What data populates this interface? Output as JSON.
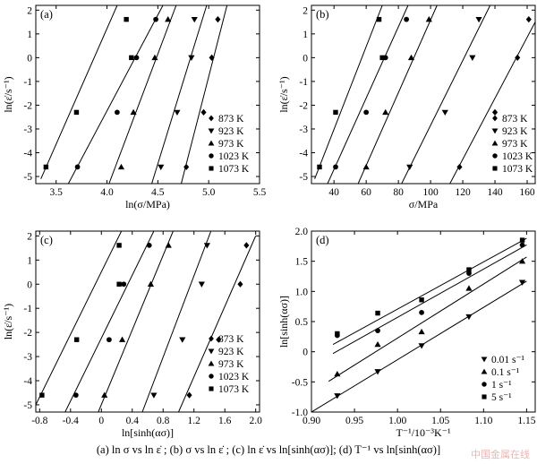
{
  "caption": "(a)   ln σ   vs   ln ε̇ ; (b)   σ   vs   ln ε̇ ; (c)   ln ε̇ vs ln[sinh(ασ)]; (d) T⁻¹ vs ln[sinh(ασ)]",
  "watermark": "中国金属在线",
  "legend_temps": [
    "873 K",
    "923 K",
    "973 K",
    "1023 K",
    "1073 K"
  ],
  "legend_rates": [
    "0.01 s⁻¹",
    "0.1 s⁻¹",
    "1 s⁻¹",
    "5 s⁻¹"
  ],
  "chart_data": [
    {
      "panel": "(a)",
      "type": "scatter",
      "xlabel": "ln(σ/MPa)",
      "ylabel": "ln(ε̇/s⁻¹)",
      "xlim": [
        3.3,
        5.5
      ],
      "ylim": [
        -5.3,
        2.2
      ],
      "xticks": [
        "3.5",
        "4.0",
        "4.5",
        "5.0",
        "5.5"
      ],
      "yticks": [
        "2",
        "1",
        "0",
        "-1",
        "-2",
        "-3",
        "-4",
        "-5"
      ],
      "legend_position": "bottom-right",
      "series": [
        {
          "name": "873 K",
          "marker": "diamond",
          "x": [
            5.09,
            5.03,
            4.95,
            4.78
          ],
          "y": [
            1.61,
            0,
            -2.3,
            -4.6
          ],
          "fit": [
            [
              4.73,
              -5.3
            ],
            [
              5.18,
              2.2
            ]
          ]
        },
        {
          "name": "923 K",
          "marker": "triangle-down",
          "x": [
            4.86,
            4.83,
            4.69,
            4.53
          ],
          "y": [
            1.61,
            0,
            -2.3,
            -4.6
          ],
          "fit": [
            [
              4.44,
              -5.3
            ],
            [
              4.98,
              2.2
            ]
          ]
        },
        {
          "name": "973 K",
          "marker": "triangle-up",
          "x": [
            4.6,
            4.47,
            4.26,
            4.14
          ],
          "y": [
            1.61,
            0,
            -2.3,
            -4.6
          ],
          "fit": [
            [
              4.02,
              -5.3
            ],
            [
              4.68,
              2.2
            ]
          ]
        },
        {
          "name": "1023 K",
          "marker": "circle",
          "x": [
            4.48,
            4.29,
            4.1,
            3.71
          ],
          "y": [
            1.61,
            0,
            -2.3,
            -4.6
          ],
          "fit": [
            [
              3.62,
              -5.3
            ],
            [
              4.55,
              2.2
            ]
          ]
        },
        {
          "name": "1073 K",
          "marker": "square",
          "x": [
            4.19,
            4.24,
            3.7,
            3.4
          ],
          "y": [
            1.61,
            0,
            -2.3,
            -4.6
          ],
          "fit": [
            [
              3.35,
              -5.1
            ],
            [
              4.1,
              2.2
            ]
          ]
        }
      ]
    },
    {
      "panel": "(b)",
      "type": "scatter",
      "xlabel": "σ/MPa",
      "ylabel": "ln(ε̇/s⁻¹)",
      "xlim": [
        26,
        165
      ],
      "ylim": [
        -5.3,
        2.2
      ],
      "xticks": [
        "40",
        "60",
        "80",
        "100",
        "120",
        "140",
        "160"
      ],
      "yticks": [
        "2",
        "1",
        "0",
        "-1",
        "-2",
        "-3",
        "-4",
        "-5"
      ],
      "legend_position": "bottom-right",
      "series": [
        {
          "name": "873 K",
          "marker": "diamond",
          "x": [
            161,
            154,
            140,
            118
          ],
          "y": [
            1.61,
            0,
            -2.3,
            -4.6
          ],
          "fit": [
            [
              112,
              -5.3
            ],
            [
              165,
              1.5
            ]
          ]
        },
        {
          "name": "923 K",
          "marker": "triangle-down",
          "x": [
            130,
            126,
            109,
            87
          ],
          "y": [
            1.61,
            0,
            -2.3,
            -4.6
          ],
          "fit": [
            [
              82,
              -5.3
            ],
            [
              137,
              2.2
            ]
          ]
        },
        {
          "name": "973 K",
          "marker": "triangle-up",
          "x": [
            99,
            88,
            72,
            60
          ],
          "y": [
            1.61,
            0,
            -2.3,
            -4.6
          ],
          "fit": [
            [
              55,
              -5.3
            ],
            [
              104,
              2.2
            ]
          ]
        },
        {
          "name": "1023 K",
          "marker": "circle",
          "x": [
            85,
            72,
            60,
            41
          ],
          "y": [
            1.61,
            0,
            -2.3,
            -4.6
          ],
          "fit": [
            [
              36,
              -5.3
            ],
            [
              86,
              2.2
            ]
          ]
        },
        {
          "name": "1073 K",
          "marker": "square",
          "x": [
            68,
            70,
            41,
            31
          ],
          "y": [
            1.61,
            0,
            -2.3,
            -4.6
          ],
          "fit": [
            [
              28,
              -5.1
            ],
            [
              70,
              2.2
            ]
          ]
        }
      ]
    },
    {
      "panel": "(c)",
      "type": "scatter",
      "xlabel": "ln[sinh(ασ)]",
      "ylabel": "ln(ε̇/s⁻¹)",
      "xlim": [
        -0.85,
        2.05
      ],
      "ylim": [
        -5.3,
        2.2
      ],
      "xticks": [
        "-0.8",
        "-0.4",
        "0",
        "0.4",
        "0.8",
        "1.2",
        "1.6",
        "2.0"
      ],
      "yticks": [
        "2",
        "1",
        "0",
        "-1",
        "-2",
        "-3",
        "-4",
        "-5"
      ],
      "legend_position": "bottom-right",
      "series": [
        {
          "name": "873 K",
          "marker": "diamond",
          "x": [
            1.88,
            1.8,
            1.52,
            1.14
          ],
          "y": [
            1.61,
            0,
            -2.3,
            -4.6
          ],
          "fit": [
            [
              1.0,
              -5.3
            ],
            [
              2.0,
              2.0
            ]
          ]
        },
        {
          "name": "923 K",
          "marker": "triangle-down",
          "x": [
            1.37,
            1.3,
            1.05,
            0.68
          ],
          "y": [
            1.61,
            0,
            -2.3,
            -4.6
          ],
          "fit": [
            [
              0.53,
              -5.3
            ],
            [
              1.42,
              2.2
            ]
          ]
        },
        {
          "name": "973 K",
          "marker": "triangle-up",
          "x": [
            0.87,
            0.64,
            0.27,
            0.04
          ],
          "y": [
            1.61,
            0,
            -2.3,
            -4.6
          ],
          "fit": [
            [
              -0.04,
              -5.3
            ],
            [
              0.93,
              2.2
            ]
          ]
        },
        {
          "name": "1023 K",
          "marker": "circle",
          "x": [
            0.62,
            0.29,
            0.1,
            -0.33
          ],
          "y": [
            1.61,
            0,
            -2.3,
            -4.6
          ],
          "fit": [
            [
              -0.47,
              -5.3
            ],
            [
              0.68,
              2.2
            ]
          ]
        },
        {
          "name": "1073 K",
          "marker": "square",
          "x": [
            0.23,
            0.23,
            -0.32,
            -0.77
          ],
          "y": [
            1.61,
            0,
            -2.3,
            -4.6
          ],
          "fit": [
            [
              -0.85,
              -5.0
            ],
            [
              0.26,
              2.2
            ]
          ]
        }
      ]
    },
    {
      "panel": "(d)",
      "type": "scatter",
      "xlabel": "T⁻¹/10⁻³K⁻¹",
      "ylabel": "ln[sinh(ασ)]",
      "xlim": [
        0.9,
        1.16
      ],
      "ylim": [
        -1.0,
        2.0
      ],
      "xticks": [
        "0.90",
        "0.95",
        "1.00",
        "1.05",
        "1.10",
        "1.15"
      ],
      "yticks": [
        "2.0",
        "1.5",
        "1.0",
        "0.5",
        "0",
        "-0.5",
        "-1.0"
      ],
      "legend_position": "bottom-right",
      "series": [
        {
          "name": "0.01 s⁻¹",
          "marker": "triangle-down",
          "x": [
            0.93,
            0.977,
            1.028,
            1.083,
            1.145
          ],
          "y": [
            -0.73,
            -0.33,
            0.1,
            0.58,
            1.15
          ],
          "fit": [
            [
              0.9,
              -1.0
            ],
            [
              1.15,
              1.17
            ]
          ]
        },
        {
          "name": "0.1 s⁻¹",
          "marker": "triangle-up",
          "x": [
            0.93,
            0.977,
            1.028,
            1.083,
            1.145
          ],
          "y": [
            -0.37,
            0.12,
            0.33,
            1.05,
            1.5
          ],
          "fit": [
            [
              0.92,
              -0.49
            ],
            [
              1.15,
              1.57
            ]
          ]
        },
        {
          "name": "1 s⁻¹",
          "marker": "circle",
          "x": [
            0.93,
            0.977,
            1.028,
            1.083,
            1.145
          ],
          "y": [
            0.27,
            0.35,
            0.65,
            1.3,
            1.77
          ],
          "fit": [
            [
              0.925,
              -0.03
            ],
            [
              1.15,
              1.77
            ]
          ]
        },
        {
          "name": "5 s⁻¹",
          "marker": "square",
          "x": [
            0.93,
            0.977,
            1.028,
            1.083,
            1.145
          ],
          "y": [
            0.3,
            0.64,
            0.86,
            1.36,
            1.85
          ],
          "fit": [
            [
              0.925,
              0.12
            ],
            [
              1.15,
              1.88
            ]
          ]
        }
      ]
    }
  ]
}
